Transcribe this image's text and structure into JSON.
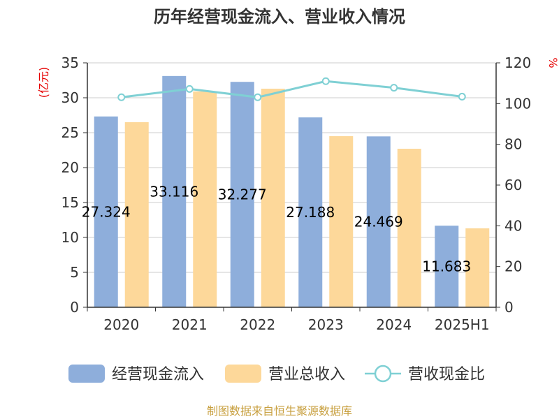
{
  "chart_data": {
    "type": "bar",
    "title": "历年经营现金流入、营业收入情况",
    "categories": [
      "2020",
      "2021",
      "2022",
      "2023",
      "2024",
      "2025H1"
    ],
    "series": [
      {
        "name": "经营现金流入",
        "type": "bar",
        "axis": "left",
        "color": "#8eaedb",
        "values": [
          27.324,
          33.116,
          32.277,
          27.188,
          24.469,
          11.683
        ],
        "labels": [
          "27.324",
          "33.116",
          "32.277",
          "27.188",
          "24.469",
          "11.683"
        ]
      },
      {
        "name": "营业总收入",
        "type": "bar",
        "axis": "left",
        "color": "#fdd89a",
        "values": [
          26.5,
          30.9,
          31.3,
          24.5,
          22.7,
          11.3
        ]
      },
      {
        "name": "营收现金比",
        "type": "line",
        "axis": "right",
        "color": "#7fd0d4",
        "values": [
          103.1,
          107.2,
          103.1,
          111.0,
          107.8,
          103.4
        ]
      }
    ],
    "y_left": {
      "label": "(亿元)",
      "min": 0,
      "max": 35,
      "step": 5
    },
    "y_right": {
      "label": "%",
      "min": 0,
      "max": 120,
      "step": 20
    },
    "grid": true,
    "legend_position": "bottom"
  },
  "source": "制图数据来自恒生聚源数据库"
}
